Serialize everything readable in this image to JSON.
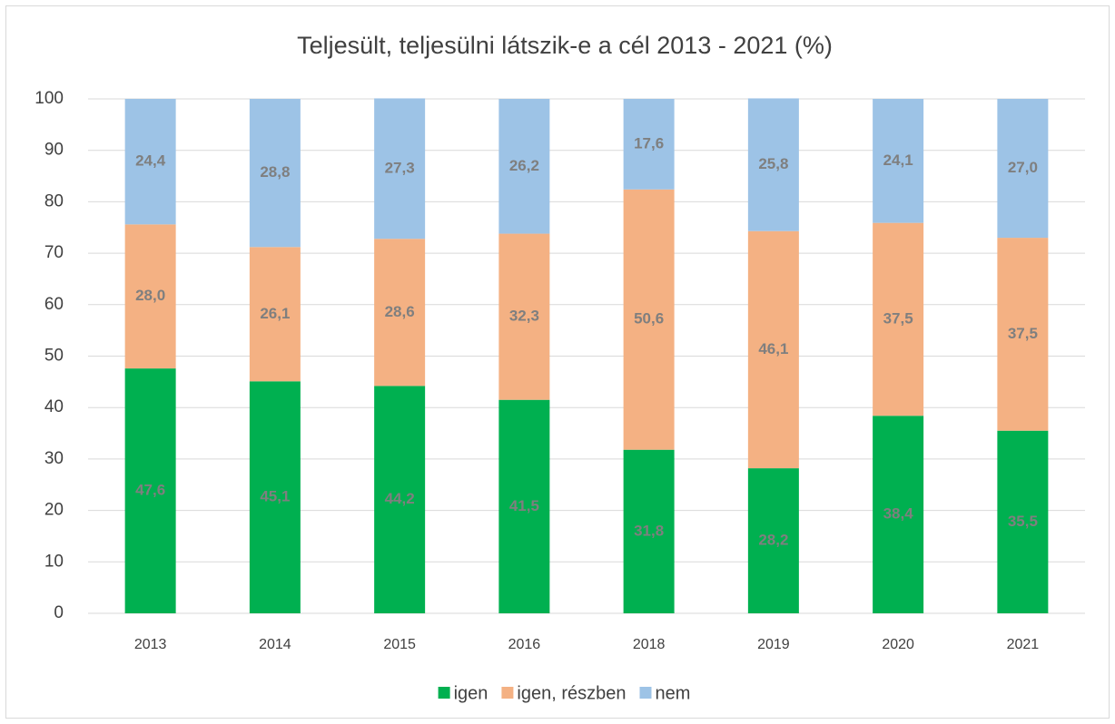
{
  "chart_data": {
    "type": "stacked_bar",
    "title": "Teljesült, teljesülni látszik-e a cél 2013 - 2021 (%)",
    "categories": [
      "2013",
      "2014",
      "2015",
      "2016",
      "2018",
      "2019",
      "2020",
      "2021"
    ],
    "series": [
      {
        "name": "igen",
        "color": "#00b050",
        "values": [
          47.6,
          45.1,
          44.2,
          41.5,
          31.8,
          28.2,
          38.4,
          35.5
        ],
        "value_labels": [
          "47,6",
          "45,1",
          "44,2",
          "41,5",
          "31,8",
          "28,2",
          "38,4",
          "35,5"
        ]
      },
      {
        "name": "igen, részben",
        "color": "#f4b183",
        "values": [
          28.0,
          26.1,
          28.6,
          32.3,
          50.6,
          46.1,
          37.5,
          37.5
        ],
        "value_labels": [
          "28,0",
          "26,1",
          "28,6",
          "32,3",
          "50,6",
          "46,1",
          "37,5",
          "37,5"
        ]
      },
      {
        "name": "nem",
        "color": "#9dc3e6",
        "values": [
          24.4,
          28.8,
          27.3,
          26.2,
          17.6,
          25.8,
          24.1,
          27.0
        ],
        "value_labels": [
          "24,4",
          "28,8",
          "27,3",
          "26,2",
          "17,6",
          "25,8",
          "24,1",
          "27,0"
        ]
      }
    ],
    "ylim": [
      0,
      100
    ],
    "yticks": [
      0,
      10,
      20,
      30,
      40,
      50,
      60,
      70,
      80,
      90,
      100
    ],
    "grid": true,
    "legend": "bottom"
  }
}
